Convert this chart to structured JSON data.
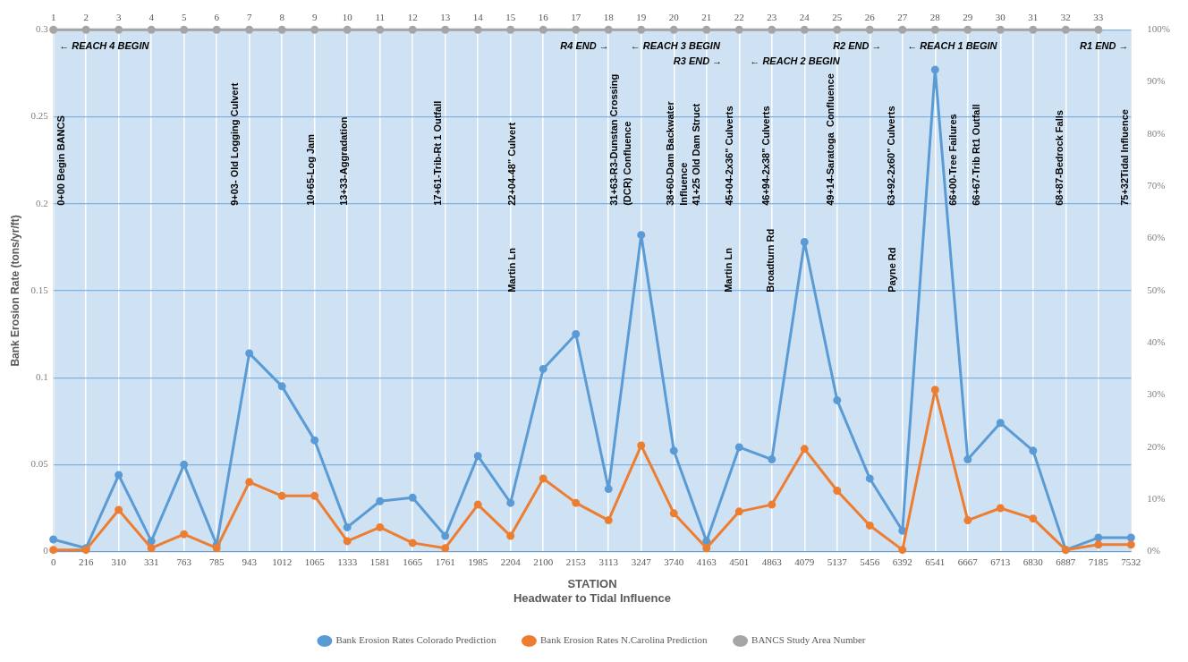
{
  "chart_data": {
    "type": "line",
    "categories": [
      "0",
      "216",
      "310",
      "331",
      "763",
      "785",
      "943",
      "1012",
      "1065",
      "1333",
      "1581",
      "1665",
      "1761",
      "1985",
      "2204",
      "2100",
      "2153",
      "3113",
      "3247",
      "3740",
      "4163",
      "4501",
      "4863",
      "4079",
      "5137",
      "5456",
      "6392",
      "6541",
      "6667",
      "6713",
      "6830",
      "6887",
      "7185",
      "7532"
    ],
    "series": [
      {
        "name": "Bank Erosion Rates Colorado Prediction",
        "color": "#5b9bd5",
        "values": [
          0.007,
          0.002,
          0.044,
          0.006,
          0.05,
          0.004,
          0.114,
          0.095,
          0.064,
          0.014,
          0.029,
          0.031,
          0.009,
          0.055,
          0.028,
          0.105,
          0.125,
          0.036,
          0.182,
          0.058,
          0.006,
          0.06,
          0.053,
          0.178,
          0.087,
          0.042,
          0.012,
          0.277,
          0.053,
          0.074,
          0.058,
          0.001,
          0.008,
          0.008
        ]
      },
      {
        "name": "Bank Erosion Rates N.Carolina Prediction",
        "color": "#ed7d31",
        "values": [
          0.001,
          0.001,
          0.024,
          0.002,
          0.01,
          0.002,
          0.04,
          0.032,
          0.032,
          0.006,
          0.014,
          0.005,
          0.002,
          0.027,
          0.009,
          0.042,
          0.028,
          0.018,
          0.061,
          0.022,
          0.002,
          0.023,
          0.027,
          0.059,
          0.035,
          0.015,
          0.001,
          0.093,
          0.018,
          0.025,
          0.019,
          0.001,
          0.004,
          0.004
        ]
      },
      {
        "name": "BANCS Study Area Number",
        "color": "#a5a5a5",
        "axis": "y2",
        "values": [
          100,
          100,
          100,
          100,
          100,
          100,
          100,
          100,
          100,
          100,
          100,
          100,
          100,
          100,
          100,
          100,
          100,
          100,
          100,
          100,
          100,
          100,
          100,
          100,
          100,
          100,
          100,
          100,
          100,
          100,
          100,
          100,
          100,
          null
        ]
      }
    ],
    "xlabel": "STATION\nHeadwater to Tidal Influence",
    "ylabel": "Bank Erosion Rate (tons/yr/ft)",
    "ylim": [
      0,
      0.3
    ],
    "yticks": [
      0,
      0.05,
      0.1,
      0.15,
      0.2,
      0.25,
      0.3
    ],
    "y2lim": [
      0,
      100
    ],
    "y2ticks": [
      {
        "value": 0,
        "label": "0%"
      },
      {
        "value": 10,
        "label": "10%"
      },
      {
        "value": 20,
        "label": "20%"
      },
      {
        "value": 30,
        "label": "30%"
      },
      {
        "value": 40,
        "label": "40%"
      },
      {
        "value": 50,
        "label": "50%"
      },
      {
        "value": 60,
        "label": "60%"
      },
      {
        "value": 70,
        "label": "70%"
      },
      {
        "value": 80,
        "label": "80%"
      },
      {
        "value": 90,
        "label": "90%"
      },
      {
        "value": 100,
        "label": "100%"
      }
    ],
    "x2lim": [
      1,
      34
    ],
    "x2ticks": [
      1,
      2,
      3,
      4,
      5,
      6,
      7,
      8,
      9,
      10,
      11,
      12,
      13,
      14,
      15,
      16,
      17,
      18,
      19,
      20,
      21,
      22,
      23,
      24,
      25,
      26,
      27,
      28,
      29,
      30,
      31,
      32,
      33
    ],
    "grid": true,
    "legend": "bottom",
    "marker": "circle",
    "annotations": [
      "← REACH 4 BEGIN",
      "R4 END →",
      "← REACH 3 BEGIN",
      "R3 END →",
      "← REACH 2 BEGIN",
      "R2 END →",
      "← REACH 1 BEGIN",
      "R1 END →",
      "0+00 Begin BANCS",
      "9+03- Old Logging Culvert",
      "10+65-Log Jam",
      "13+33-Aggradation",
      "17+61-Trib-Rt 1 Outfall",
      "22+04-48\" Culvert",
      "Martin Ln",
      "31+63-R3-Dunstan Crossing\n(DCR) Confluence",
      "38+60-Dam Backwater\nInfluence",
      "41+25 Old Dam Struct",
      "45+04-2x36\" Culverts",
      "Martin Ln",
      "46+94-2x38\" Culverts",
      "Broadturn Rd",
      "49+14-Saratoga  Confluence",
      "63+92-2x60\" Culverts",
      "Payne Rd",
      "66+00-Tree Failures",
      "66+67-Trib Rt1 Outfall",
      "68+87-Bedrock Falls",
      "75+32Tidal Influence"
    ]
  }
}
